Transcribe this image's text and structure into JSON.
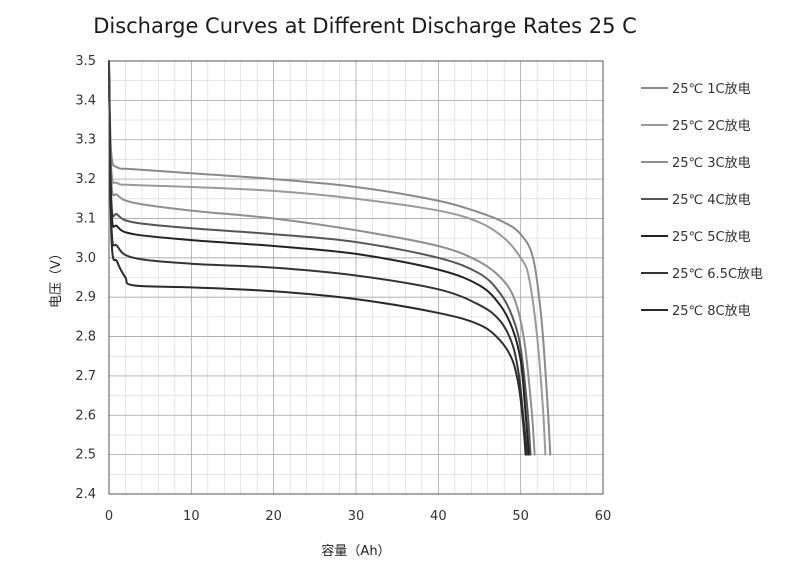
{
  "chart_data": {
    "type": "line",
    "title": "Discharge Curves at Different Discharge Rates 25 C",
    "xlabel": "容量（Ah）",
    "ylabel": "电压（V）",
    "xlim": [
      0,
      60
    ],
    "ylim": [
      2.4,
      3.5
    ],
    "xticks": [
      0,
      10,
      20,
      30,
      40,
      50,
      60
    ],
    "yticks": [
      2.4,
      2.5,
      2.6,
      2.7,
      2.8,
      2.9,
      3.0,
      3.1,
      3.2,
      3.3,
      3.4,
      3.5
    ],
    "grid": true,
    "legend_position": "right",
    "series": [
      {
        "name": "25℃ 1C放电",
        "color": "#8a8a8a",
        "x": [
          0,
          0.3,
          1,
          3,
          10,
          20,
          30,
          40,
          45,
          48,
          50,
          51.5,
          52.5,
          53.2,
          53.6
        ],
        "y": [
          3.44,
          3.26,
          3.23,
          3.225,
          3.215,
          3.2,
          3.18,
          3.145,
          3.115,
          3.09,
          3.06,
          3.0,
          2.85,
          2.65,
          2.5
        ]
      },
      {
        "name": "25℃ 2C放电",
        "color": "#9a9a9a",
        "x": [
          0,
          0.3,
          1,
          3,
          10,
          20,
          30,
          40,
          45,
          48,
          50,
          51,
          52,
          52.7,
          53.0
        ],
        "y": [
          3.46,
          3.22,
          3.19,
          3.185,
          3.18,
          3.17,
          3.15,
          3.12,
          3.09,
          3.05,
          3.0,
          2.95,
          2.8,
          2.62,
          2.5
        ]
      },
      {
        "name": "25℃ 3C放电",
        "color": "#8f8f8f",
        "x": [
          0,
          0.3,
          1,
          3,
          10,
          20,
          30,
          40,
          45,
          48,
          49.5,
          50.5,
          51.3,
          51.7
        ],
        "y": [
          3.47,
          3.19,
          3.16,
          3.14,
          3.12,
          3.1,
          3.07,
          3.03,
          2.99,
          2.94,
          2.88,
          2.78,
          2.62,
          2.5
        ]
      },
      {
        "name": "25℃ 4C放电",
        "color": "#555555",
        "x": [
          0,
          0.3,
          1,
          3,
          10,
          20,
          30,
          40,
          45,
          47.5,
          49,
          50,
          50.8,
          51.2
        ],
        "y": [
          3.48,
          3.14,
          3.11,
          3.09,
          3.075,
          3.06,
          3.04,
          3.0,
          2.96,
          2.91,
          2.85,
          2.77,
          2.62,
          2.5
        ]
      },
      {
        "name": "25℃ 5C放电",
        "color": "#222222",
        "x": [
          0,
          0.3,
          1,
          3,
          10,
          20,
          30,
          40,
          45,
          47.5,
          49,
          50,
          50.5,
          51.0
        ],
        "y": [
          3.48,
          3.12,
          3.08,
          3.06,
          3.045,
          3.03,
          3.01,
          2.97,
          2.93,
          2.88,
          2.82,
          2.74,
          2.63,
          2.5
        ]
      },
      {
        "name": "25℃ 6.5C放电",
        "color": "#333333",
        "x": [
          0,
          0.3,
          1,
          3,
          10,
          20,
          30,
          40,
          45,
          47.5,
          49,
          49.8,
          50.3,
          50.8
        ],
        "y": [
          3.49,
          3.08,
          3.03,
          3.0,
          2.985,
          2.975,
          2.955,
          2.92,
          2.88,
          2.84,
          2.78,
          2.7,
          2.6,
          2.5
        ]
      },
      {
        "name": "25℃ 8C放电",
        "color": "#2a2a2a",
        "x": [
          0,
          0.3,
          1,
          2,
          3,
          10,
          20,
          30,
          40,
          45,
          47.5,
          49,
          49.8,
          50.3,
          50.6
        ],
        "y": [
          3.5,
          3.05,
          2.99,
          2.95,
          2.93,
          2.925,
          2.915,
          2.895,
          2.86,
          2.83,
          2.79,
          2.74,
          2.67,
          2.58,
          2.5
        ]
      }
    ]
  }
}
